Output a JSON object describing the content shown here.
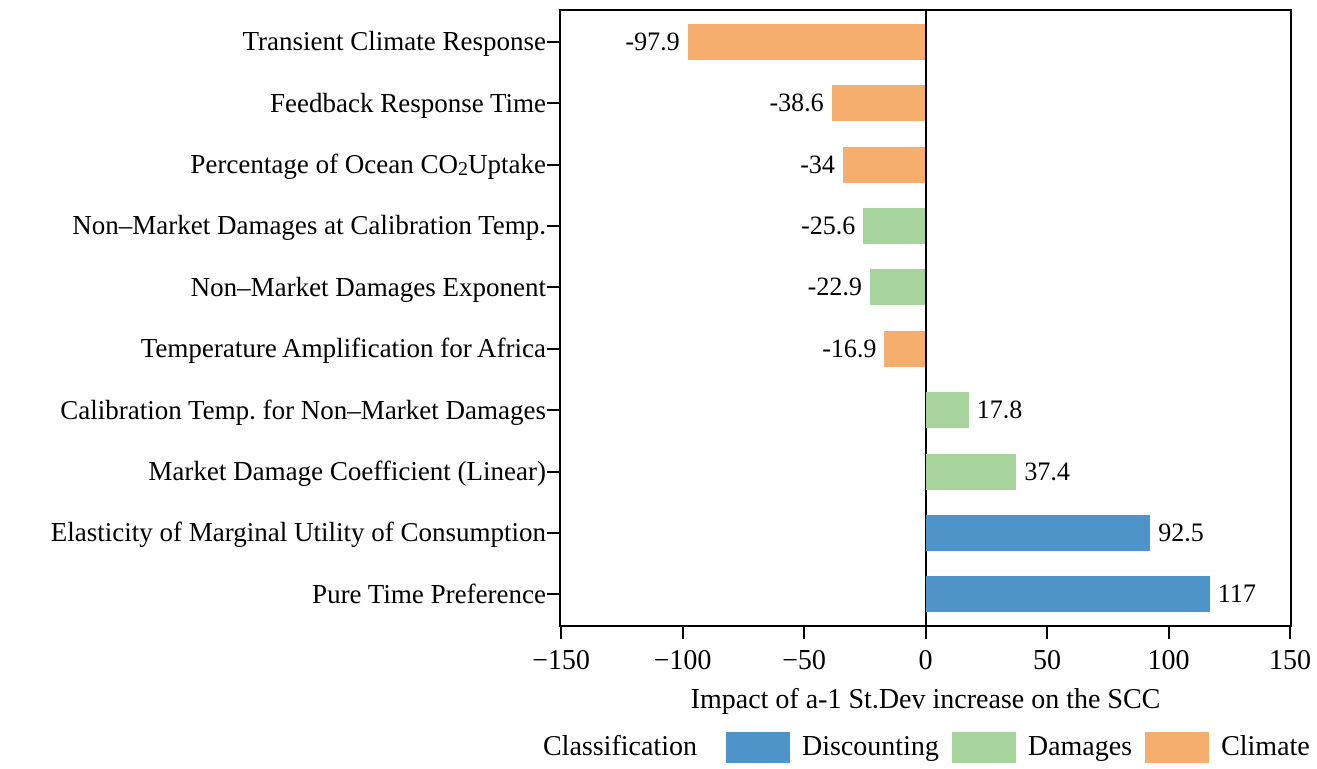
{
  "colors": {
    "discounting_blue": "#4e94c8",
    "damages_green": "#a6d49c",
    "climate_orange": "#f6ae6e",
    "axis_black": "#000000",
    "background": "#ffffff"
  },
  "chart_data": {
    "type": "bar",
    "orientation": "horizontal",
    "title": "",
    "xlabel": "Impact of a-1 St.Dev increase on the SCC",
    "ylabel": "",
    "xlim": [
      -150,
      150
    ],
    "x_ticks": [
      -150,
      -100,
      -50,
      0,
      50,
      100,
      150
    ],
    "x_tick_labels": [
      "−150",
      "−100",
      "−50",
      "0",
      "50",
      "100",
      "150"
    ],
    "grid": false,
    "categories": [
      "Transient Climate Response",
      "Feedback Response Time",
      "Percentage of Ocean CO2 Uptake",
      "Non–Market Damages at Calibration Temp.",
      "Non–Market Damages Exponent",
      "Temperature Amplification for Africa",
      "Calibration Temp. for Non–Market Damages",
      "Market Damage Coefficient (Linear)",
      "Elasticity of Marginal Utility of Consumption",
      "Pure Time Preference"
    ],
    "values": [
      -97.9,
      -38.6,
      -34,
      -25.6,
      -22.9,
      -16.9,
      17.8,
      37.4,
      92.5,
      117
    ],
    "value_labels": [
      "-97.9",
      "-38.6",
      "-34",
      "-25.6",
      "-22.9",
      "-16.9",
      "17.8",
      "37.4",
      "92.5",
      "117"
    ],
    "classes": [
      "Climate",
      "Climate",
      "Climate",
      "Damages",
      "Damages",
      "Climate",
      "Damages",
      "Damages",
      "Discounting",
      "Discounting"
    ],
    "class_colors": {
      "Discounting": "#4e94c8",
      "Damages": "#a6d49c",
      "Climate": "#f6ae6e"
    },
    "legend": {
      "position": "bottom",
      "title": "Classification",
      "entries": [
        {
          "label": "Discounting",
          "color": "#4e94c8"
        },
        {
          "label": "Damages",
          "color": "#a6d49c"
        },
        {
          "label": "Climate",
          "color": "#f6ae6e"
        }
      ]
    }
  }
}
